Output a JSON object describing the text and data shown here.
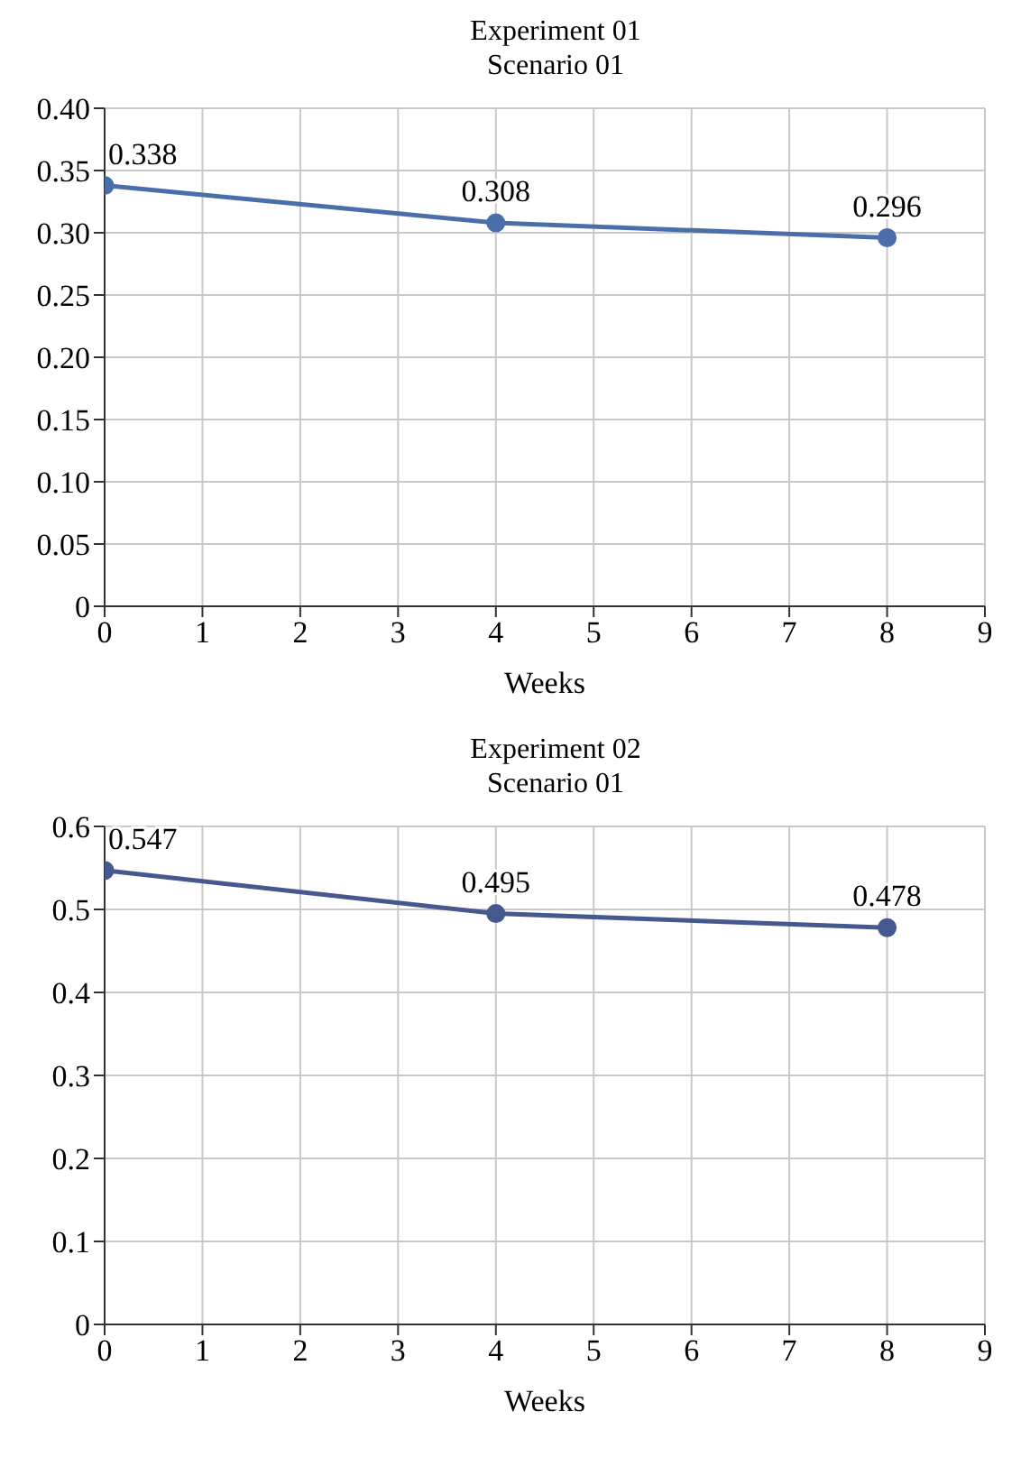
{
  "chart_data": [
    {
      "type": "line",
      "title": "Experiment 01",
      "subtitle": "Scenario 01",
      "xlabel": "Weeks",
      "x": [
        0,
        4,
        8
      ],
      "values": [
        0.338,
        0.308,
        0.296
      ],
      "color": "#4a6fa8",
      "xlim": [
        0,
        9
      ],
      "xticks": [
        0,
        1,
        2,
        3,
        4,
        5,
        6,
        7,
        8,
        9
      ],
      "ylim": [
        0,
        0.4
      ],
      "yticks": [
        0,
        0.05,
        {
          "value": 0.1,
          "label": "0.10"
        },
        0.15,
        {
          "value": 0.2,
          "label": "0.20"
        },
        0.25,
        {
          "value": 0.3,
          "label": "0.30"
        },
        0.35,
        {
          "value": 0.4,
          "label": "0.40"
        }
      ],
      "grid": true,
      "marker": "circle",
      "data_labels": true
    },
    {
      "type": "line",
      "title": "Experiment 02",
      "subtitle": "Scenario 01",
      "xlabel": "Weeks",
      "x": [
        0,
        4,
        8
      ],
      "values": [
        0.547,
        0.495,
        0.478
      ],
      "color": "#45598f",
      "xlim": [
        0,
        9
      ],
      "xticks": [
        0,
        1,
        2,
        3,
        4,
        5,
        6,
        7,
        8,
        9
      ],
      "ylim": [
        0,
        0.6
      ],
      "yticks": [
        0,
        0.1,
        0.2,
        0.3,
        0.4,
        0.5,
        0.6
      ],
      "grid": true,
      "marker": "circle",
      "data_labels": true
    }
  ]
}
